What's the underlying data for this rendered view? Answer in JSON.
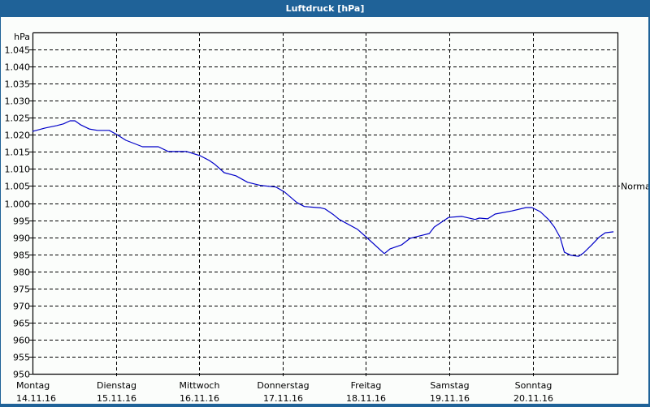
{
  "window": {
    "title": "Luftdruck [hPa]",
    "frame_color": "#1f6298",
    "background": "#fbfdfb"
  },
  "chart_data": {
    "type": "line",
    "title": "Luftdruck [hPa]",
    "xlabel": "",
    "ylabel": "hPa",
    "ylim": [
      950,
      1050
    ],
    "y_ticks": [
      950,
      955,
      960,
      965,
      970,
      975,
      980,
      985,
      990,
      995,
      1000,
      1005,
      1010,
      1015,
      1020,
      1025,
      1030,
      1035,
      1040,
      1045
    ],
    "y_tick_labels": [
      "950",
      "955",
      "960",
      "965",
      "970",
      "975",
      "980",
      "985",
      "990",
      "995",
      "1.000",
      "1.005",
      "1.010",
      "1.015",
      "1.020",
      "1.025",
      "1.030",
      "1.035",
      "1.040",
      "1.045"
    ],
    "x_days": [
      {
        "day": "Montag",
        "date": "14.11.16"
      },
      {
        "day": "Dienstag",
        "date": "15.11.16"
      },
      {
        "day": "Mittwoch",
        "date": "16.11.16"
      },
      {
        "day": "Donnerstag",
        "date": "17.11.16"
      },
      {
        "day": "Freitag",
        "date": "18.11.16"
      },
      {
        "day": "Samstag",
        "date": "19.11.16"
      },
      {
        "day": "Sonntag",
        "date": "20.11.16"
      }
    ],
    "reference_line": {
      "label": "Normal",
      "value": 1005
    },
    "grid": true,
    "grid_style": "dashed",
    "line_color": "#0000c8",
    "series": [
      {
        "name": "Luftdruck",
        "x_days": [
          0.0,
          0.15,
          0.29,
          0.37,
          0.45,
          0.51,
          0.58,
          0.68,
          0.78,
          0.92,
          1.01,
          1.12,
          1.32,
          1.51,
          1.63,
          1.85,
          2.01,
          2.12,
          2.19,
          2.3,
          2.44,
          2.58,
          2.73,
          2.92,
          3.02,
          3.17,
          3.26,
          3.46,
          3.51,
          3.61,
          3.68,
          3.9,
          4.01,
          4.22,
          4.29,
          4.43,
          4.53,
          4.68,
          4.76,
          4.82,
          4.99,
          5.15,
          5.31,
          5.36,
          5.46,
          5.55,
          5.75,
          5.92,
          5.99,
          6.09,
          6.19,
          6.26,
          6.33,
          6.38,
          6.46,
          6.55,
          6.61,
          6.71,
          6.8,
          6.87,
          6.97
        ],
        "values": [
          1021.0,
          1022.0,
          1022.7,
          1023.2,
          1024.1,
          1024.1,
          1022.9,
          1021.7,
          1021.3,
          1021.3,
          1020.1,
          1018.4,
          1016.5,
          1016.5,
          1015.1,
          1015.1,
          1013.9,
          1012.5,
          1011.3,
          1008.9,
          1008.0,
          1006.1,
          1005.2,
          1004.7,
          1003.3,
          1000.2,
          999.0,
          998.6,
          998.3,
          996.6,
          995.2,
          992.3,
          989.9,
          985.2,
          986.6,
          987.8,
          989.7,
          990.6,
          991.1,
          993.0,
          995.8,
          996.1,
          995.2,
          995.6,
          995.4,
          996.8,
          997.7,
          998.7,
          998.7,
          997.5,
          995.2,
          993.0,
          989.9,
          985.6,
          984.7,
          984.4,
          985.4,
          987.8,
          990.1,
          991.3,
          991.6
        ]
      }
    ]
  }
}
